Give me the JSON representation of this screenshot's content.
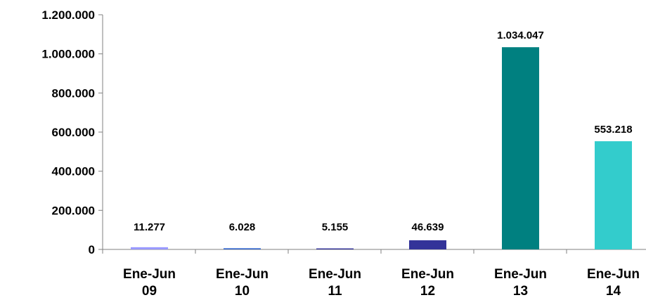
{
  "chart_data": {
    "type": "bar",
    "categories": [
      [
        "Ene-Jun",
        "09"
      ],
      [
        "Ene-Jun",
        "10"
      ],
      [
        "Ene-Jun",
        "11"
      ],
      [
        "Ene-Jun",
        "12"
      ],
      [
        "Ene-Jun",
        "13"
      ],
      [
        "Ene-Jun",
        "14"
      ]
    ],
    "values": [
      11277,
      6028,
      5155,
      46639,
      1034047,
      553218
    ],
    "data_labels": [
      "11.277",
      "6.028",
      "5.155",
      "46.639",
      "1.034.047",
      "553.218"
    ],
    "bar_colors": [
      "#9999ff",
      "#3366cc",
      "#333399",
      "#333399",
      "#008080",
      "#33cccc"
    ],
    "ylim": [
      0,
      1200000
    ],
    "yticks": [
      0,
      200000,
      400000,
      600000,
      800000,
      1000000,
      1200000
    ],
    "ytick_labels": [
      "0",
      "200.000",
      "400.000",
      "600.000",
      "800.000",
      "1.000.000",
      "1.200.000"
    ],
    "grid": false,
    "legend": "none",
    "title": "",
    "xlabel": "",
    "ylabel": ""
  }
}
